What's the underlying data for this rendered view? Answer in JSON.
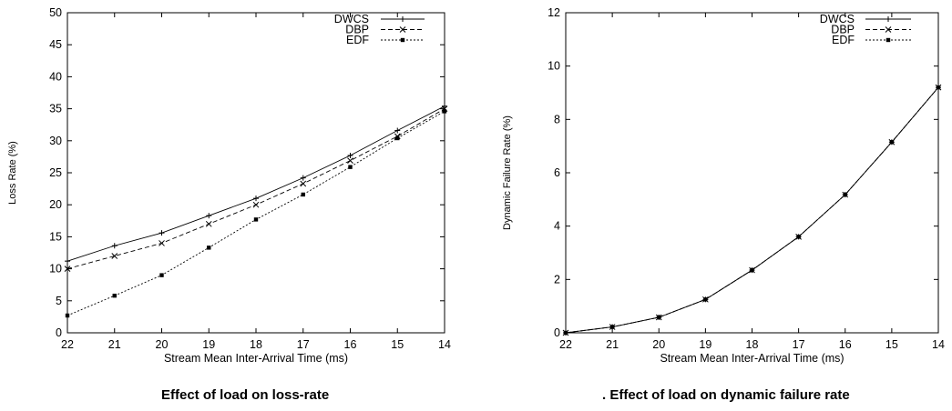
{
  "chart_data": [
    {
      "type": "line",
      "caption": "Effect of load on loss-rate",
      "xlabel": "Stream Mean Inter-Arrival Time (ms)",
      "ylabel": "Loss Rate (%)",
      "categories": [
        "22",
        "21",
        "20",
        "19",
        "18",
        "17",
        "16",
        "15",
        "14"
      ],
      "ylim": [
        0,
        50
      ],
      "yticks": [
        0,
        5,
        10,
        15,
        20,
        25,
        30,
        35,
        40,
        45,
        50
      ],
      "legend_position": "top-right",
      "grid": false,
      "series": [
        {
          "name": "DWCS",
          "values": [
            11.2,
            13.6,
            15.6,
            18.3,
            21.0,
            24.2,
            27.7,
            31.6,
            35.4
          ]
        },
        {
          "name": "DBP",
          "values": [
            10.0,
            12.0,
            14.0,
            17.0,
            20.0,
            23.3,
            26.9,
            30.7,
            35.0
          ]
        },
        {
          "name": "EDF",
          "values": [
            2.7,
            5.8,
            9.0,
            13.3,
            17.7,
            21.6,
            25.9,
            30.4,
            34.6
          ]
        }
      ]
    },
    {
      "type": "line",
      "caption": ". Effect of load on dynamic failure rate",
      "xlabel": "Stream Mean Inter-Arrival Time (ms)",
      "ylabel": "Dynamic Failure Rate (%)",
      "categories": [
        "22",
        "21",
        "20",
        "19",
        "18",
        "17",
        "16",
        "15",
        "14"
      ],
      "ylim": [
        0,
        12
      ],
      "yticks": [
        0,
        2,
        4,
        6,
        8,
        10,
        12
      ],
      "legend_position": "top-right",
      "grid": false,
      "series": [
        {
          "name": "DWCS",
          "values": [
            0.0,
            0.22,
            0.58,
            1.25,
            2.35,
            3.6,
            5.18,
            7.15,
            9.2
          ]
        },
        {
          "name": "DBP",
          "values": [
            0.0,
            0.22,
            0.58,
            1.25,
            2.35,
            3.6,
            5.18,
            7.15,
            9.2
          ]
        },
        {
          "name": "EDF",
          "values": [
            0.0,
            0.22,
            0.58,
            1.25,
            2.35,
            3.6,
            5.18,
            7.15,
            9.2
          ]
        }
      ]
    }
  ]
}
